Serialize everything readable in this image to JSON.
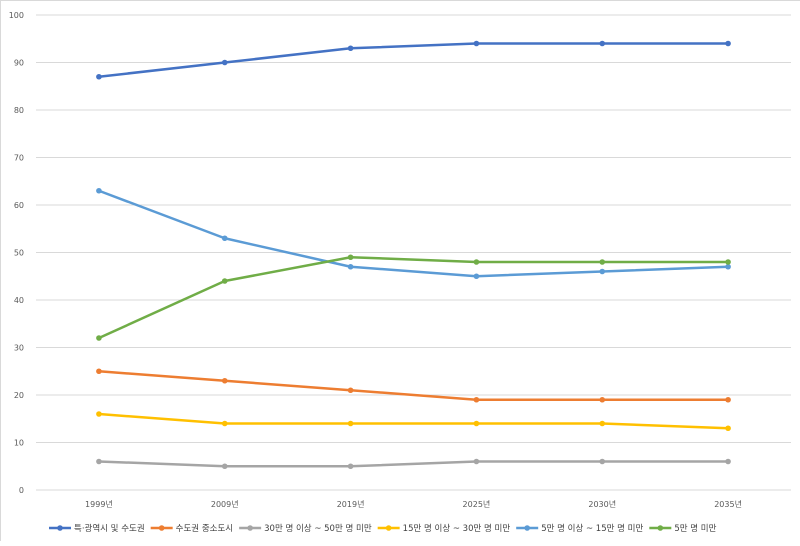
{
  "chart_data": {
    "type": "line",
    "title": "",
    "xlabel": "",
    "ylabel": "",
    "categories": [
      "1999년",
      "2009년",
      "2019년",
      "2025년",
      "2030년",
      "2035년"
    ],
    "ylim": [
      0,
      100
    ],
    "ytick_step": 10,
    "grid": true,
    "legend_position": "bottom",
    "series": [
      {
        "name": "특·광역시 및 수도권",
        "color": "#4472c4",
        "values": [
          87,
          90,
          93,
          94,
          94,
          94
        ]
      },
      {
        "name": "수도권 중소도시",
        "color": "#ed7d31",
        "values": [
          25,
          23,
          21,
          19,
          19,
          19
        ]
      },
      {
        "name": "30만 명 이상 ~ 50만 명 미만",
        "color": "#a5a5a5",
        "values": [
          6,
          5,
          5,
          6,
          6,
          6
        ]
      },
      {
        "name": "15만 명 이상 ~ 30만 명 미만",
        "color": "#ffc000",
        "values": [
          16,
          14,
          14,
          14,
          14,
          13
        ]
      },
      {
        "name": "5만 명 이상 ~ 15만 명 미만",
        "color": "#5b9bd5",
        "values": [
          63,
          53,
          47,
          45,
          46,
          47
        ]
      },
      {
        "name": "5만 명 미만",
        "color": "#70ad47",
        "values": [
          32,
          44,
          49,
          48,
          48,
          48
        ]
      }
    ]
  }
}
